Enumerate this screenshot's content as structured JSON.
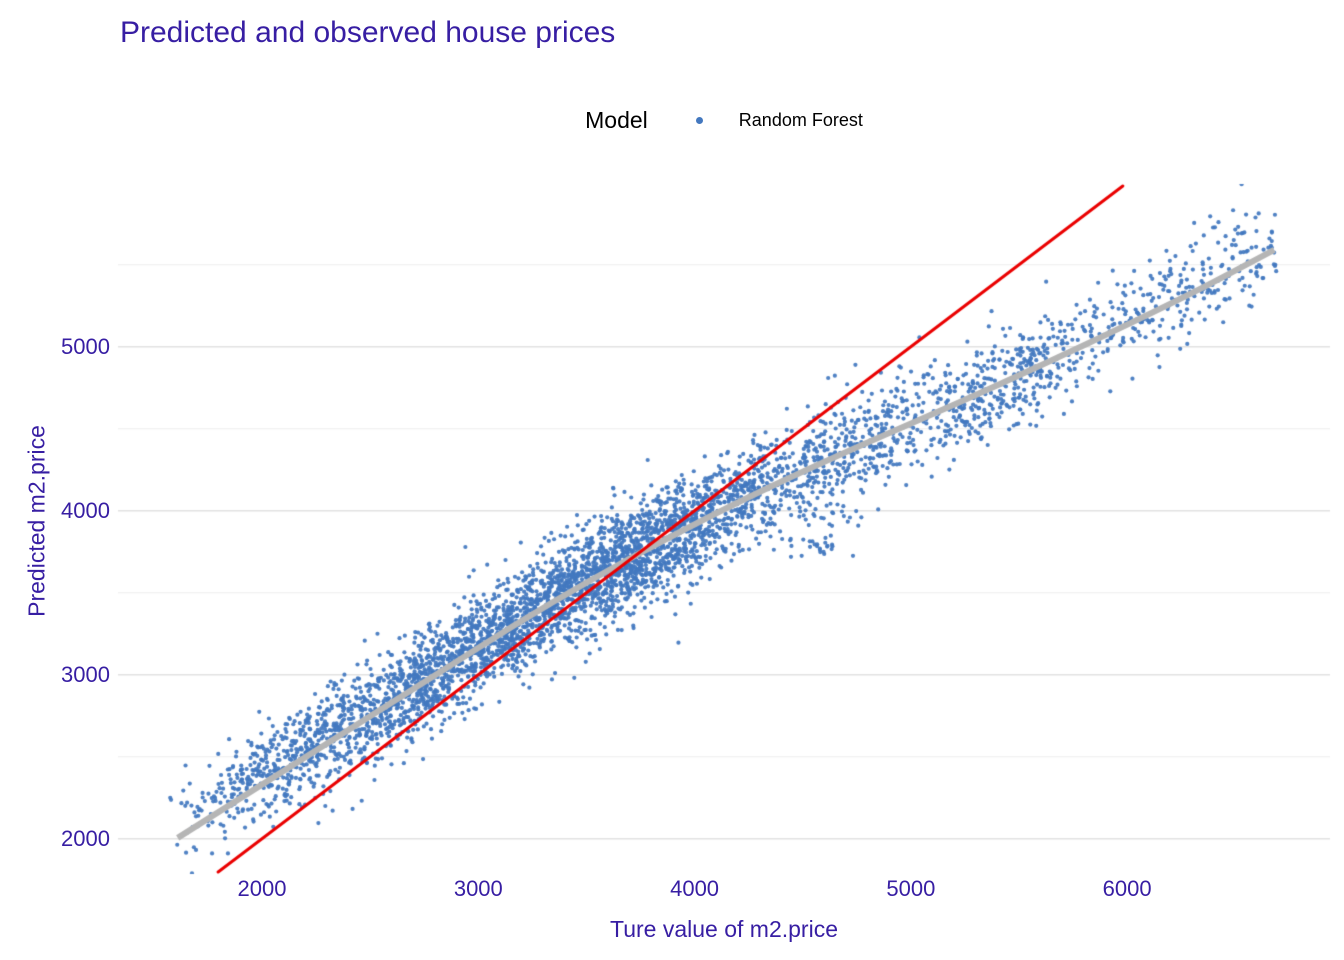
{
  "chart_data": {
    "type": "scatter",
    "title": "Predicted and observed house prices",
    "xlabel": "Ture value of m2.price",
    "ylabel": "Predicted m2.price",
    "legend": {
      "title": "Model",
      "position": "top",
      "series": [
        {
          "name": "Random Forest",
          "color": "#4378bf",
          "marker": "point"
        }
      ]
    },
    "text_color": "#371ea3",
    "legend_text_color": "#000000",
    "grid": "horizontal-only",
    "grid_color_major": "#e2e2e2",
    "grid_color_minor": "#ececec",
    "xlim": [
      1334,
      6938
    ],
    "ylim": [
      1797,
      5980
    ],
    "x_ticks": [
      2000,
      3000,
      4000,
      5000,
      6000
    ],
    "y_ticks": [
      2000,
      3000,
      4000,
      5000
    ],
    "y_minor_gridlines": [
      2500,
      3500,
      4500,
      5500
    ],
    "identity_line": {
      "slope": 1,
      "intercept": 0,
      "color": "#ea0000",
      "width": 3
    },
    "trend_line": {
      "color": "#b5b5b5",
      "width": 6,
      "points": [
        [
          1610,
          2005
        ],
        [
          2640,
          2860
        ],
        [
          3340,
          3450
        ],
        [
          4040,
          3950
        ],
        [
          4580,
          4290
        ],
        [
          5400,
          4760
        ],
        [
          6245,
          5285
        ],
        [
          6680,
          5590
        ]
      ]
    },
    "scatter": {
      "n": 4600,
      "seed": 2024042,
      "point_radius": 2.1,
      "color": "#4378bf",
      "opacity": 0.93,
      "x_range": [
        1575,
        6690
      ],
      "x_mixture": [
        {
          "dist": "normal",
          "mean": 3350,
          "sd": 560,
          "w": 0.42
        },
        {
          "dist": "normal",
          "mean": 3850,
          "sd": 430,
          "w": 0.2
        },
        {
          "dist": "normal",
          "mean": 2550,
          "sd": 340,
          "w": 0.12
        },
        {
          "dist": "normal",
          "mean": 2050,
          "sd": 230,
          "w": 0.06
        },
        {
          "dist": "uniform",
          "min": 4500,
          "max": 5600,
          "w": 0.12
        },
        {
          "dist": "uniform",
          "min": 5550,
          "max": 6690,
          "w": 0.08
        }
      ],
      "noise_sd": 150,
      "tail_frac": 0.1,
      "tail_sd": 140,
      "bias_points": [
        [
          1575,
          100
        ],
        [
          2100,
          55
        ],
        [
          2700,
          0
        ],
        [
          5600,
          0
        ],
        [
          6100,
          30
        ],
        [
          6690,
          55
        ]
      ]
    },
    "clusters": [
      {
        "cx": 4560,
        "cy": 3770,
        "sx": 80,
        "sy": 45,
        "n": 26
      },
      {
        "cx": 4700,
        "cy": 3955,
        "sx": 60,
        "sy": 38,
        "n": 12
      }
    ],
    "outlier_points": [
      [
        6384,
        5795
      ],
      [
        6550,
        5806
      ],
      [
        6500,
        5714
      ],
      [
        6542,
        5697
      ],
      [
        6310,
        5755
      ]
    ]
  }
}
